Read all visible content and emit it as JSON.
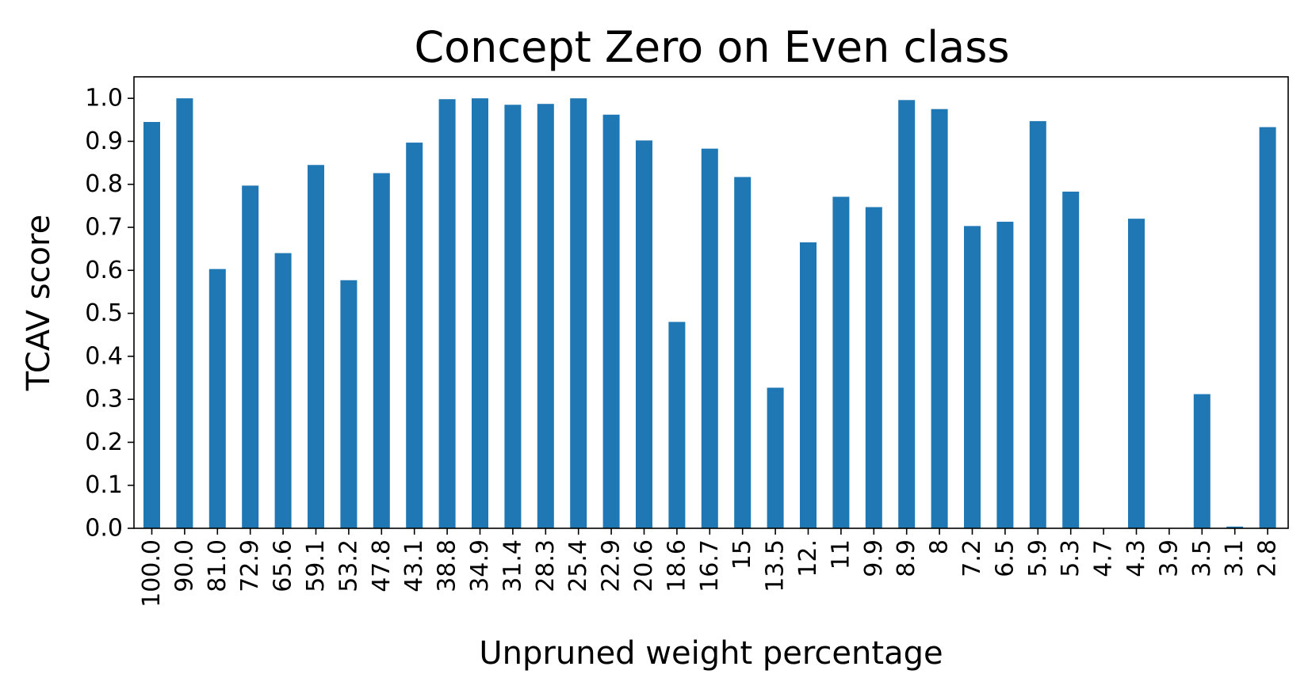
{
  "chart_data": {
    "type": "bar",
    "title": "Concept Zero on Even class",
    "xlabel": "Unpruned weight percentage",
    "ylabel": "TCAV score",
    "ylim": [
      0,
      1.05
    ],
    "yticks": [
      "0.0",
      "0.1",
      "0.2",
      "0.3",
      "0.4",
      "0.5",
      "0.6",
      "0.7",
      "0.8",
      "0.9",
      "1.0"
    ],
    "categories": [
      "100.0",
      "90.0",
      "81.0",
      "72.9",
      "65.6",
      "59.1",
      "53.2",
      "47.8",
      "43.1",
      "38.8",
      "34.9",
      "31.4",
      "28.3",
      "25.4",
      "22.9",
      "20.6",
      "18.6",
      "16.7",
      "15",
      "13.5",
      "12.",
      "11",
      "9.9",
      "8.9",
      "8",
      "7.2",
      "6.5",
      "5.9",
      "5.3",
      "4.7",
      "4.3",
      "3.9",
      "3.5",
      "3.1",
      "2.8"
    ],
    "values": [
      0.945,
      1.0,
      0.603,
      0.797,
      0.64,
      0.845,
      0.577,
      0.826,
      0.897,
      0.998,
      1.0,
      0.985,
      0.987,
      1.0,
      0.962,
      0.902,
      0.48,
      0.883,
      0.817,
      0.327,
      0.665,
      0.771,
      0.747,
      0.996,
      0.975,
      0.703,
      0.713,
      0.947,
      0.783,
      0.0,
      0.72,
      0.0,
      0.312,
      0.004,
      0.933
    ],
    "color": "#1f77b4",
    "grid": false,
    "legend": "none"
  }
}
